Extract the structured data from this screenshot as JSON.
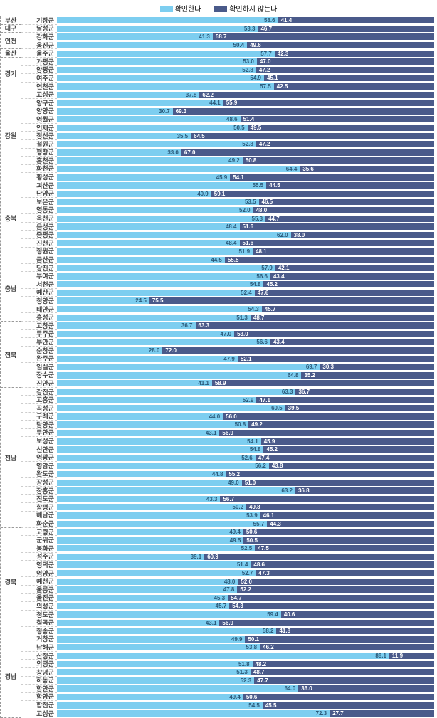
{
  "legend": {
    "confirm": "확인한다",
    "noconfirm": "확인하지 않는다"
  },
  "colors": {
    "confirm": "#7dcef0",
    "noconfirm": "#4a5a8a",
    "textConfirm": "#2a5a7a",
    "textNoconfirm": "#ffffff"
  },
  "rowHeight": 11.6,
  "regions": [
    {
      "name": "부산",
      "counties": [
        {
          "name": "기장군",
          "v1": 58.6,
          "v2": 41.4
        }
      ]
    },
    {
      "name": "대구",
      "counties": [
        {
          "name": "달성군",
          "v1": 53.3,
          "v2": 46.7
        }
      ]
    },
    {
      "name": "인천",
      "counties": [
        {
          "name": "강화군",
          "v1": 41.3,
          "v2": 58.7
        },
        {
          "name": "옹진군",
          "v1": 50.4,
          "v2": 49.6
        }
      ]
    },
    {
      "name": "울산",
      "counties": [
        {
          "name": "울주군",
          "v1": 57.7,
          "v2": 42.3
        }
      ]
    },
    {
      "name": "경기",
      "counties": [
        {
          "name": "가평군",
          "v1": 53.0,
          "v2": 47.0
        },
        {
          "name": "양평군",
          "v1": 52.8,
          "v2": 47.2
        },
        {
          "name": "여주군",
          "v1": 54.9,
          "v2": 45.1
        },
        {
          "name": "연천군",
          "v1": 57.5,
          "v2": 42.5
        }
      ]
    },
    {
      "name": "강원",
      "counties": [
        {
          "name": "고성군",
          "v1": 37.8,
          "v2": 62.2
        },
        {
          "name": "양구군",
          "v1": 44.1,
          "v2": 55.9
        },
        {
          "name": "양양군",
          "v1": 30.7,
          "v2": 69.3
        },
        {
          "name": "영월군",
          "v1": 48.6,
          "v2": 51.4
        },
        {
          "name": "인제군",
          "v1": 50.5,
          "v2": 49.5
        },
        {
          "name": "정선군",
          "v1": 35.5,
          "v2": 64.5
        },
        {
          "name": "철원군",
          "v1": 52.8,
          "v2": 47.2
        },
        {
          "name": "평창군",
          "v1": 33.0,
          "v2": 67.0
        },
        {
          "name": "홍천군",
          "v1": 49.2,
          "v2": 50.8
        },
        {
          "name": "화천군",
          "v1": 64.4,
          "v2": 35.6
        },
        {
          "name": "횡성군",
          "v1": 45.9,
          "v2": 54.1
        }
      ]
    },
    {
      "name": "충북",
      "counties": [
        {
          "name": "괴산군",
          "v1": 55.5,
          "v2": 44.5
        },
        {
          "name": "단양군",
          "v1": 40.9,
          "v2": 59.1
        },
        {
          "name": "보은군",
          "v1": 53.5,
          "v2": 46.5
        },
        {
          "name": "영동군",
          "v1": 52.0,
          "v2": 48.0
        },
        {
          "name": "옥천군",
          "v1": 55.3,
          "v2": 44.7
        },
        {
          "name": "음성군",
          "v1": 48.4,
          "v2": 51.6
        },
        {
          "name": "증평군",
          "v1": 62.0,
          "v2": 38.0
        },
        {
          "name": "진천군",
          "v1": 48.4,
          "v2": 51.6
        },
        {
          "name": "청원군",
          "v1": 51.9,
          "v2": 48.1
        }
      ]
    },
    {
      "name": "충남",
      "counties": [
        {
          "name": "금산군",
          "v1": 44.5,
          "v2": 55.5
        },
        {
          "name": "당진군",
          "v1": 57.9,
          "v2": 42.1
        },
        {
          "name": "부여군",
          "v1": 56.6,
          "v2": 43.4
        },
        {
          "name": "서천군",
          "v1": 54.8,
          "v2": 45.2
        },
        {
          "name": "예산군",
          "v1": 52.4,
          "v2": 47.6
        },
        {
          "name": "청양군",
          "v1": 24.5,
          "v2": 75.5
        },
        {
          "name": "태안군",
          "v1": 54.3,
          "v2": 45.7
        },
        {
          "name": "홍성군",
          "v1": 51.3,
          "v2": 48.7
        }
      ]
    },
    {
      "name": "전북",
      "counties": [
        {
          "name": "고창군",
          "v1": 36.7,
          "v2": 63.3
        },
        {
          "name": "무주군",
          "v1": 47.0,
          "v2": 53.0
        },
        {
          "name": "부안군",
          "v1": 56.6,
          "v2": 43.4
        },
        {
          "name": "순창군",
          "v1": 28.0,
          "v2": 72.0
        },
        {
          "name": "완주군",
          "v1": 47.9,
          "v2": 52.1
        },
        {
          "name": "임실군",
          "v1": 69.7,
          "v2": 30.3
        },
        {
          "name": "장수군",
          "v1": 64.8,
          "v2": 35.2
        },
        {
          "name": "진안군",
          "v1": 41.1,
          "v2": 58.9
        }
      ]
    },
    {
      "name": "전남",
      "counties": [
        {
          "name": "강진군",
          "v1": 63.3,
          "v2": 36.7
        },
        {
          "name": "고흥군",
          "v1": 52.9,
          "v2": 47.1
        },
        {
          "name": "곡성군",
          "v1": 60.5,
          "v2": 39.5
        },
        {
          "name": "구례군",
          "v1": 44.0,
          "v2": 56.0
        },
        {
          "name": "담양군",
          "v1": 50.8,
          "v2": 49.2
        },
        {
          "name": "무안군",
          "v1": 43.1,
          "v2": 56.9
        },
        {
          "name": "보성군",
          "v1": 54.1,
          "v2": 45.9
        },
        {
          "name": "신안군",
          "v1": 54.8,
          "v2": 45.2
        },
        {
          "name": "영광군",
          "v1": 52.6,
          "v2": 47.4
        },
        {
          "name": "영암군",
          "v1": 56.2,
          "v2": 43.8
        },
        {
          "name": "완도군",
          "v1": 44.8,
          "v2": 55.2
        },
        {
          "name": "장성군",
          "v1": 49.0,
          "v2": 51.0
        },
        {
          "name": "장흥군",
          "v1": 63.2,
          "v2": 36.8
        },
        {
          "name": "진도군",
          "v1": 43.3,
          "v2": 56.7
        },
        {
          "name": "함평군",
          "v1": 50.2,
          "v2": 49.8
        },
        {
          "name": "해남군",
          "v1": 53.9,
          "v2": 46.1
        },
        {
          "name": "화순군",
          "v1": 55.7,
          "v2": 44.3
        }
      ]
    },
    {
      "name": "경북",
      "counties": [
        {
          "name": "고령군",
          "v1": 49.4,
          "v2": 50.6
        },
        {
          "name": "군위군",
          "v1": 49.5,
          "v2": 50.5
        },
        {
          "name": "봉화군",
          "v1": 52.5,
          "v2": 47.5
        },
        {
          "name": "성주군",
          "v1": 39.1,
          "v2": 60.9
        },
        {
          "name": "영덕군",
          "v1": 51.4,
          "v2": 48.6
        },
        {
          "name": "영양군",
          "v1": 52.7,
          "v2": 47.3
        },
        {
          "name": "예천군",
          "v1": 48.0,
          "v2": 52.0
        },
        {
          "name": "울릉군",
          "v1": 47.8,
          "v2": 52.2
        },
        {
          "name": "울진군",
          "v1": 45.3,
          "v2": 54.7
        },
        {
          "name": "의성군",
          "v1": 45.7,
          "v2": 54.3
        },
        {
          "name": "청도군",
          "v1": 59.4,
          "v2": 40.6
        },
        {
          "name": "칠곡군",
          "v1": 43.1,
          "v2": 56.9
        },
        {
          "name": "청송군",
          "v1": 58.2,
          "v2": 41.8
        }
      ]
    },
    {
      "name": "경남",
      "counties": [
        {
          "name": "거창군",
          "v1": 49.9,
          "v2": 50.1
        },
        {
          "name": "남해군",
          "v1": 53.8,
          "v2": 46.2
        },
        {
          "name": "산청군",
          "v1": 88.1,
          "v2": 11.9
        },
        {
          "name": "의령군",
          "v1": 51.8,
          "v2": 48.2
        },
        {
          "name": "창녕군",
          "v1": 51.3,
          "v2": 48.7
        },
        {
          "name": "하동군",
          "v1": 52.3,
          "v2": 47.7
        },
        {
          "name": "함안군",
          "v1": 64.0,
          "v2": 36.0
        },
        {
          "name": "함양군",
          "v1": 49.4,
          "v2": 50.6
        },
        {
          "name": "합천군",
          "v1": 54.5,
          "v2": 45.5
        },
        {
          "name": "고성군",
          "v1": 72.3,
          "v2": 27.7
        }
      ]
    }
  ]
}
